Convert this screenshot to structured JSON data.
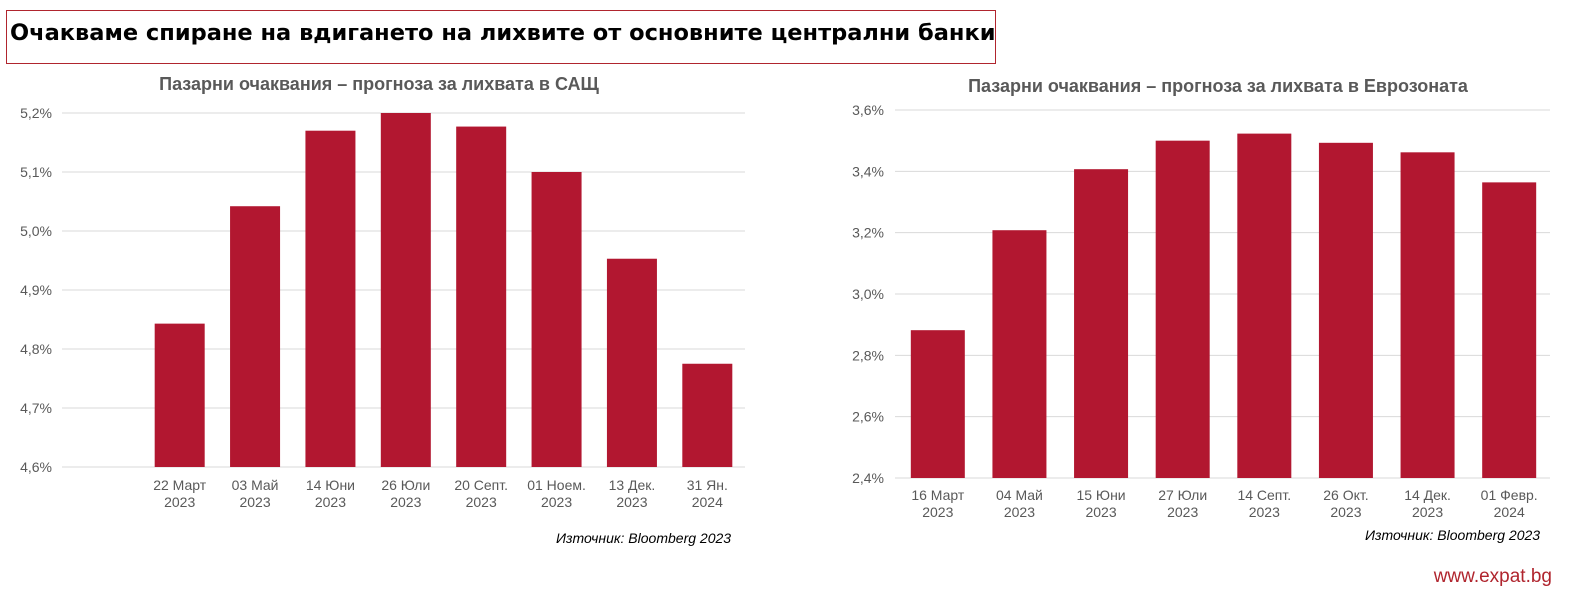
{
  "headline": "Очакваме спиране на вдигането на лихвите от основните централни банки",
  "brand": "www.expat.bg",
  "colors": {
    "bar": "#b21730",
    "frame": "#b0252e",
    "grid": "#d9d9d9",
    "text": "#595959"
  },
  "chart_data": [
    {
      "type": "bar",
      "title": "Пазарни очаквания – прогноза за лихвата в САЩ",
      "categories": [
        [
          "22 Март",
          "2023"
        ],
        [
          "03 Май",
          "2023"
        ],
        [
          "14 Юни",
          "2023"
        ],
        [
          "26 Юли",
          "2023"
        ],
        [
          "20 Септ.",
          "2023"
        ],
        [
          "01 Ноем.",
          "2023"
        ],
        [
          "13 Дек.",
          "2023"
        ],
        [
          "31 Ян.",
          "2024"
        ]
      ],
      "values": [
        4.843,
        5.042,
        5.17,
        5.2,
        5.177,
        5.1,
        4.953,
        4.775
      ],
      "ylim": [
        4.6,
        5.2
      ],
      "yticks": [
        4.6,
        4.7,
        4.8,
        4.9,
        5.0,
        5.1,
        5.2
      ],
      "ytick_labels": [
        "4,6%",
        "4,7%",
        "4,8%",
        "4,9%",
        "5,0%",
        "5,1%",
        "5,2%"
      ],
      "grid": true,
      "source": "Източник: Bloomberg 2023"
    },
    {
      "type": "bar",
      "title": "Пазарни очаквания – прогноза за лихвата в Еврозоната",
      "categories": [
        [
          "16 Март",
          "2023"
        ],
        [
          "04 Май",
          "2023"
        ],
        [
          "15 Юни",
          "2023"
        ],
        [
          "27 Юли",
          "2023"
        ],
        [
          "14 Септ.",
          "2023"
        ],
        [
          "26 Окт.",
          "2023"
        ],
        [
          "14 Дек.",
          "2023"
        ],
        [
          "01 Февр.",
          "2024"
        ]
      ],
      "values": [
        2.882,
        3.208,
        3.407,
        3.5,
        3.523,
        3.493,
        3.462,
        3.364
      ],
      "ylim": [
        2.4,
        3.6
      ],
      "yticks": [
        2.4,
        2.6,
        2.8,
        3.0,
        3.2,
        3.4,
        3.6
      ],
      "ytick_labels": [
        "2,4%",
        "2,6%",
        "2,8%",
        "3,0%",
        "3,2%",
        "3,4%",
        "3,6%"
      ],
      "grid": true,
      "source": "Източник: Bloomberg 2023"
    }
  ]
}
